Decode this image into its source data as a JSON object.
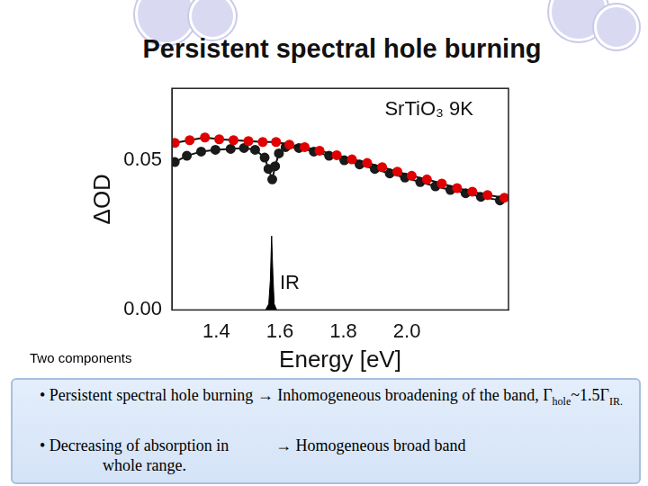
{
  "slide": {
    "title": "Persistent spectral hole burning",
    "caption": "Two components",
    "bullets": [
      {
        "lead": "• Persistent spectral hole burning",
        "result": [
          "→ Inhomogeneous broadening of the band, Γ",
          {
            "sub": "hole"
          },
          "~1.5Γ",
          {
            "sub": "IR."
          }
        ]
      },
      {
        "lead": "• Decreasing of absorption in whole range.",
        "result": [
          "→ Homogeneous broad band"
        ]
      }
    ]
  },
  "chart_data": {
    "type": "line",
    "x_label": "Energy [eV]",
    "y_label": "ΔOD",
    "xlim": [
      1.26,
      2.32
    ],
    "xticks": [
      1.4,
      1.6,
      1.8,
      {
        "value": 2.0,
        "label": "2.0"
      }
    ],
    "ylim": [
      0,
      0.074
    ],
    "yticks": [
      {
        "value": 0,
        "label": "0.00"
      },
      {
        "value": 0.05,
        "label": "0.05"
      }
    ],
    "grid": false,
    "annotations": [
      {
        "text": "SrTiO₃ 9K",
        "x": 1.93,
        "y": 0.067
      },
      {
        "text": "IR",
        "x": 1.6,
        "y": 0.009
      }
    ],
    "series": [
      {
        "color": "#e00000",
        "type": "line",
        "marker": "circle",
        "x": [
          1.269,
          1.316,
          1.364,
          1.409,
          1.454,
          1.501,
          1.546,
          1.588,
          1.63,
          1.678,
          1.725,
          1.779,
          1.827,
          1.875,
          1.922,
          1.97,
          2.015,
          2.063,
          2.11,
          2.158,
          2.206,
          2.254,
          2.307
        ],
        "values": [
          0.0558,
          0.0567,
          0.0576,
          0.057,
          0.0567,
          0.0564,
          0.0561,
          0.0561,
          0.0552,
          0.0544,
          0.0532,
          0.0517,
          0.0503,
          0.0491,
          0.0477,
          0.0462,
          0.0448,
          0.0436,
          0.0422,
          0.0407,
          0.0395,
          0.0384,
          0.0375
        ]
      },
      {
        "color": "#1a1a1a",
        "type": "line",
        "marker": "circle",
        "x": [
          1.269,
          1.307,
          1.352,
          1.397,
          1.445,
          1.487,
          1.522,
          1.552,
          1.564,
          1.576,
          1.585,
          1.597,
          1.618,
          1.66,
          1.707,
          1.755,
          1.803,
          1.851,
          1.899,
          1.946,
          1.994,
          2.042,
          2.09,
          2.137,
          2.185,
          2.233,
          2.293
        ],
        "values": [
          0.0494,
          0.0515,
          0.0529,
          0.0535,
          0.0538,
          0.0541,
          0.0535,
          0.0509,
          0.0471,
          0.0436,
          0.048,
          0.0523,
          0.0544,
          0.0541,
          0.0529,
          0.0515,
          0.05,
          0.0486,
          0.0471,
          0.0456,
          0.0442,
          0.0427,
          0.0413,
          0.0401,
          0.039,
          0.0378,
          0.0366
        ]
      },
      {
        "color": "#000000",
        "type": "area",
        "marker": "none",
        "x": [
          1.555,
          1.565,
          1.57,
          1.574,
          1.578,
          1.582,
          1.59
        ],
        "values": [
          0,
          0.002,
          0.01,
          0.0247,
          0.012,
          0.002,
          0
        ]
      }
    ]
  }
}
